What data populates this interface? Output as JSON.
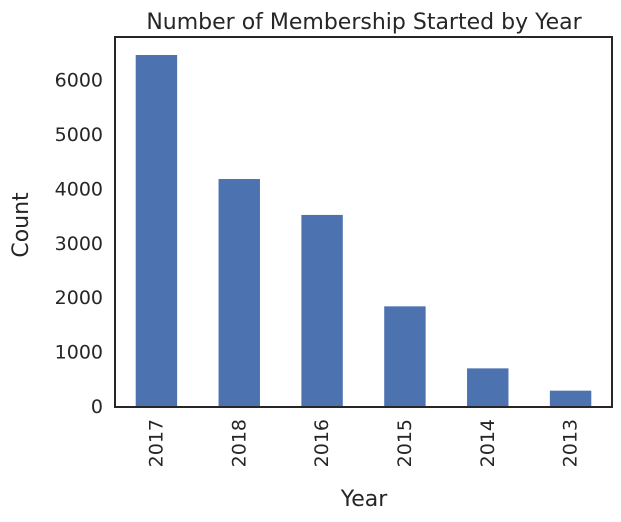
{
  "chart_data": {
    "type": "bar",
    "title": "Number of Membership Started by Year",
    "xlabel": "Year",
    "ylabel": "Count",
    "categories": [
      "2017",
      "2018",
      "2016",
      "2015",
      "2014",
      "2013"
    ],
    "values": [
      6469,
      4190,
      3530,
      1850,
      710,
      300
    ],
    "ylim": [
      0,
      6800
    ],
    "yticks": [
      0,
      1000,
      2000,
      3000,
      4000,
      5000,
      6000
    ],
    "grid": false,
    "bar_color": "#4c72b0",
    "axis_color": "#262626"
  }
}
